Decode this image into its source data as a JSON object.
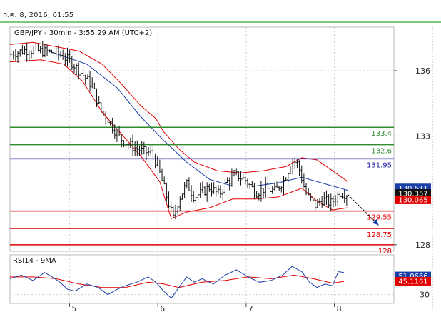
{
  "timestamp": "ก.ค. 8, 2016, 01:55",
  "chart_data": {
    "type": "candlestick",
    "title": "GBP/JPY - 30min - 3:55:29 AM (UTC+2)",
    "ylim": [
      127.7,
      138.0
    ],
    "y_ticks": [
      {
        "value": 136,
        "label": "136"
      },
      {
        "value": 133,
        "label": "133"
      },
      {
        "value": 128,
        "label": "128"
      }
    ],
    "x_ticks": [
      {
        "t": 0.155,
        "label": "5"
      },
      {
        "t": 0.385,
        "label": "6"
      },
      {
        "t": 0.615,
        "label": "7"
      },
      {
        "t": 0.845,
        "label": "8"
      }
    ],
    "price_path": [
      [
        0.0,
        136.75
      ],
      [
        0.04,
        136.95
      ],
      [
        0.08,
        136.9
      ],
      [
        0.11,
        136.85
      ],
      [
        0.13,
        136.75
      ],
      [
        0.16,
        136.4
      ],
      [
        0.19,
        135.8
      ],
      [
        0.215,
        135.3
      ],
      [
        0.235,
        134.2
      ],
      [
        0.255,
        133.8
      ],
      [
        0.275,
        133.2
      ],
      [
        0.295,
        132.75
      ],
      [
        0.32,
        132.5
      ],
      [
        0.345,
        132.3
      ],
      [
        0.37,
        132.2
      ],
      [
        0.385,
        131.6
      ],
      [
        0.4,
        130.7
      ],
      [
        0.415,
        129.8
      ],
      [
        0.425,
        129.2
      ],
      [
        0.44,
        130.1
      ],
      [
        0.46,
        130.8
      ],
      [
        0.48,
        130.2
      ],
      [
        0.5,
        130.4
      ],
      [
        0.52,
        130.65
      ],
      [
        0.545,
        130.3
      ],
      [
        0.565,
        130.9
      ],
      [
        0.59,
        131.2
      ],
      [
        0.615,
        130.95
      ],
      [
        0.64,
        130.4
      ],
      [
        0.665,
        130.6
      ],
      [
        0.69,
        130.45
      ],
      [
        0.715,
        131.0
      ],
      [
        0.735,
        131.9
      ],
      [
        0.75,
        131.7
      ],
      [
        0.77,
        130.4
      ],
      [
        0.795,
        129.8
      ],
      [
        0.815,
        130.1
      ],
      [
        0.835,
        129.9
      ],
      [
        0.86,
        130.4
      ],
      [
        0.88,
        130.3
      ]
    ],
    "moving_average": [
      [
        0.0,
        136.9
      ],
      [
        0.1,
        136.9
      ],
      [
        0.2,
        136.3
      ],
      [
        0.28,
        135.2
      ],
      [
        0.34,
        133.9
      ],
      [
        0.4,
        132.8
      ],
      [
        0.46,
        131.8
      ],
      [
        0.52,
        131.0
      ],
      [
        0.58,
        130.7
      ],
      [
        0.64,
        130.7
      ],
      [
        0.7,
        130.85
      ],
      [
        0.76,
        131.1
      ],
      [
        0.82,
        130.8
      ],
      [
        0.88,
        130.5
      ]
    ],
    "bollinger_upper": [
      [
        0.0,
        137.2
      ],
      [
        0.06,
        137.3
      ],
      [
        0.12,
        137.1
      ],
      [
        0.18,
        136.9
      ],
      [
        0.24,
        136.3
      ],
      [
        0.29,
        135.4
      ],
      [
        0.34,
        134.4
      ],
      [
        0.38,
        133.8
      ],
      [
        0.4,
        133.2
      ],
      [
        0.44,
        132.4
      ],
      [
        0.48,
        131.8
      ],
      [
        0.54,
        131.4
      ],
      [
        0.6,
        131.3
      ],
      [
        0.66,
        131.4
      ],
      [
        0.72,
        131.6
      ],
      [
        0.76,
        132.0
      ],
      [
        0.8,
        131.9
      ],
      [
        0.84,
        131.4
      ],
      [
        0.88,
        130.9
      ]
    ],
    "bollinger_lower": [
      [
        0.0,
        136.4
      ],
      [
        0.08,
        136.5
      ],
      [
        0.14,
        136.3
      ],
      [
        0.19,
        135.5
      ],
      [
        0.24,
        134.1
      ],
      [
        0.29,
        133.1
      ],
      [
        0.34,
        132.1
      ],
      [
        0.39,
        130.9
      ],
      [
        0.42,
        129.2
      ],
      [
        0.46,
        129.5
      ],
      [
        0.52,
        129.7
      ],
      [
        0.58,
        130.1
      ],
      [
        0.64,
        130.1
      ],
      [
        0.7,
        130.2
      ],
      [
        0.76,
        130.6
      ],
      [
        0.8,
        130.0
      ],
      [
        0.84,
        129.6
      ],
      [
        0.88,
        129.7
      ]
    ],
    "levels": [
      {
        "value": 133.4,
        "label": "133.4",
        "color": "#2e8b2e"
      },
      {
        "value": 132.6,
        "label": "132.6",
        "color": "#2e8b2e"
      },
      {
        "value": 131.95,
        "label": "131.95",
        "color": "#1a1aa6"
      },
      {
        "value": 129.55,
        "label": "129.55",
        "color": "#e00000"
      },
      {
        "value": 128.75,
        "label": "128.75",
        "color": "#e00000"
      },
      {
        "value": 128.0,
        "label": "128",
        "color": "#e00000"
      }
    ],
    "price_boxes": [
      {
        "value": 130.611,
        "label": "130.611",
        "color": "#1a3fa8"
      },
      {
        "value": 130.357,
        "label": "130.357",
        "color": "#111111"
      },
      {
        "value": 130.065,
        "label": "130.065",
        "color": "#e00000"
      }
    ],
    "forecast_arrow": {
      "from": [
        0.88,
        130.3
      ],
      "to": [
        0.96,
        128.9
      ]
    },
    "rsi": {
      "title": "RSI14 - 9MA",
      "ylim": [
        20,
        75
      ],
      "y_ticks": [
        {
          "value": 30,
          "label": "30"
        }
      ],
      "rsi_value": {
        "value": 51.0666,
        "label": "51.0666",
        "color": "#1a3fa8"
      },
      "ma_value": {
        "value": 45.1161,
        "label": "45.1161",
        "color": "#e00000"
      },
      "rsi_line": [
        [
          0.0,
          48
        ],
        [
          0.03,
          52
        ],
        [
          0.06,
          46
        ],
        [
          0.09,
          55
        ],
        [
          0.11,
          50
        ],
        [
          0.13,
          44
        ],
        [
          0.15,
          36
        ],
        [
          0.17,
          34
        ],
        [
          0.2,
          42
        ],
        [
          0.23,
          38
        ],
        [
          0.255,
          30
        ],
        [
          0.28,
          36
        ],
        [
          0.3,
          40
        ],
        [
          0.33,
          44
        ],
        [
          0.36,
          50
        ],
        [
          0.38,
          44
        ],
        [
          0.4,
          34
        ],
        [
          0.42,
          26
        ],
        [
          0.44,
          38
        ],
        [
          0.46,
          50
        ],
        [
          0.48,
          44
        ],
        [
          0.5,
          48
        ],
        [
          0.53,
          42
        ],
        [
          0.56,
          52
        ],
        [
          0.59,
          58
        ],
        [
          0.62,
          50
        ],
        [
          0.65,
          44
        ],
        [
          0.68,
          46
        ],
        [
          0.71,
          52
        ],
        [
          0.735,
          62
        ],
        [
          0.76,
          56
        ],
        [
          0.78,
          44
        ],
        [
          0.8,
          38
        ],
        [
          0.82,
          42
        ],
        [
          0.84,
          40
        ],
        [
          0.855,
          56
        ],
        [
          0.87,
          55
        ]
      ],
      "ma_line": [
        [
          0.0,
          50
        ],
        [
          0.06,
          50
        ],
        [
          0.12,
          48
        ],
        [
          0.18,
          42
        ],
        [
          0.24,
          38
        ],
        [
          0.3,
          38
        ],
        [
          0.36,
          44
        ],
        [
          0.4,
          42
        ],
        [
          0.44,
          38
        ],
        [
          0.5,
          44
        ],
        [
          0.56,
          46
        ],
        [
          0.62,
          50
        ],
        [
          0.68,
          48
        ],
        [
          0.74,
          52
        ],
        [
          0.79,
          48
        ],
        [
          0.84,
          43
        ],
        [
          0.87,
          45
        ]
      ]
    }
  }
}
